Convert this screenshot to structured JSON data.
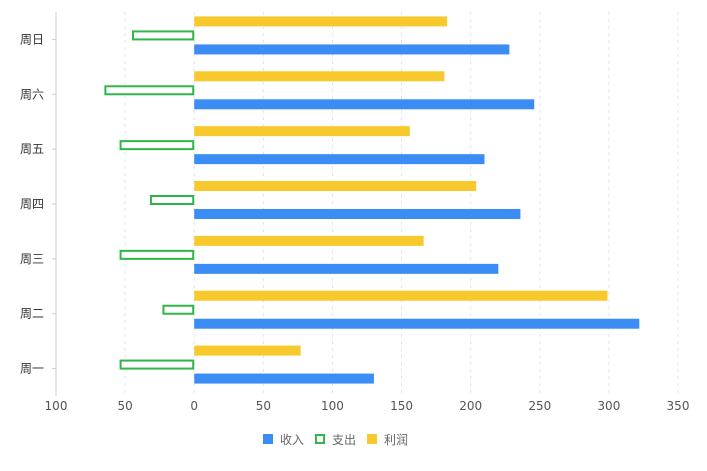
{
  "chart_data": {
    "type": "bar",
    "orientation": "horizontal",
    "categories": [
      "周一",
      "周二",
      "周三",
      "周四",
      "周五",
      "周六",
      "周日"
    ],
    "series": [
      {
        "name": "收入",
        "values": [
          130,
          322,
          220,
          236,
          210,
          246,
          228
        ],
        "color": "#3b8df5",
        "style": "filled"
      },
      {
        "name": "支出",
        "values": [
          -54,
          -23,
          -54,
          -32,
          -54,
          -65,
          -45
        ],
        "color": "#2fb54a",
        "style": "outline"
      },
      {
        "name": "利润",
        "values": [
          77,
          299,
          166,
          204,
          156,
          181,
          183
        ],
        "color": "#f8c92c",
        "style": "filled"
      }
    ],
    "xlim": [
      -100,
      350
    ],
    "xticks": [
      -100,
      -50,
      0,
      50,
      100,
      150,
      200,
      250,
      300,
      350
    ],
    "xtick_labels": [
      "100",
      "50",
      "0",
      "50",
      "100",
      "150",
      "200",
      "250",
      "300",
      "350"
    ],
    "grid": "vertical-dashed",
    "legend_position": "bottom-center",
    "title": "",
    "xlabel": "",
    "ylabel": ""
  }
}
